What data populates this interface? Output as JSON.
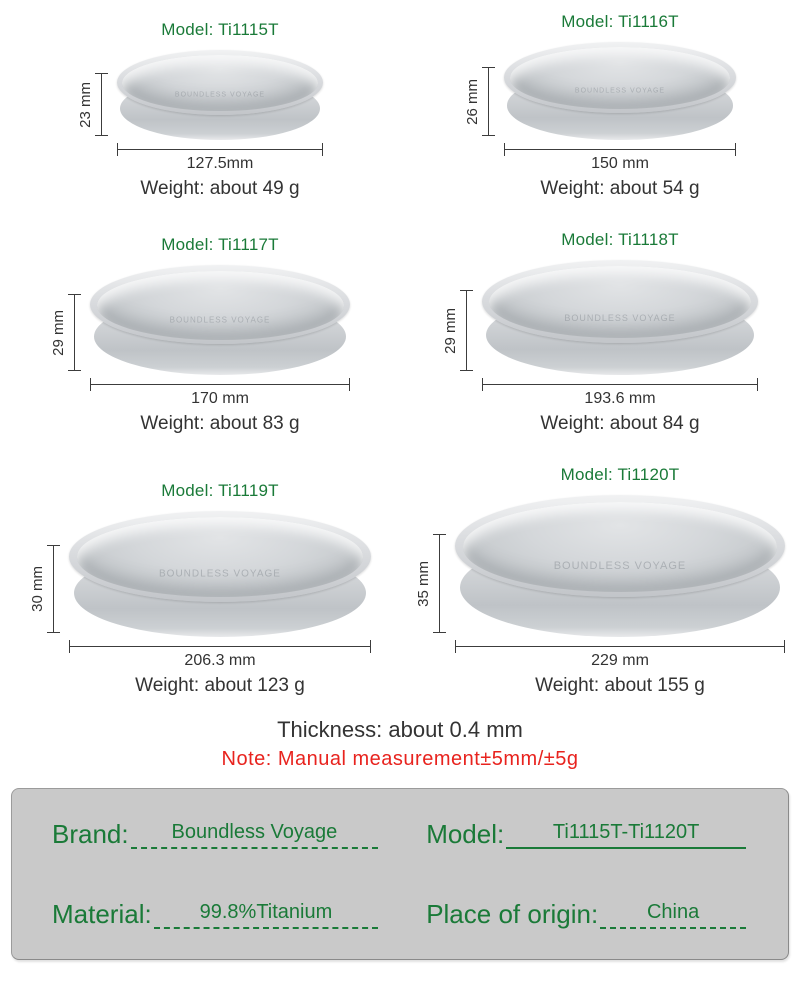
{
  "plates": [
    {
      "model": "Model: Ti1115T",
      "height": "23 mm",
      "diameter": "127.5mm",
      "weight": "Weight: about 49 g"
    },
    {
      "model": "Model: Ti1116T",
      "height": "26 mm",
      "diameter": "150 mm",
      "weight": "Weight: about 54 g"
    },
    {
      "model": "Model: Ti1117T",
      "height": "29 mm",
      "diameter": "170 mm",
      "weight": "Weight: about 83 g"
    },
    {
      "model": "Model: Ti1118T",
      "height": "29 mm",
      "diameter": "193.6 mm",
      "weight": "Weight: about 84 g"
    },
    {
      "model": "Model: Ti1119T",
      "height": "30 mm",
      "diameter": "206.3 mm",
      "weight": "Weight: about 123 g"
    },
    {
      "model": "Model: Ti1120T",
      "height": "35 mm",
      "diameter": "229 mm",
      "weight": "Weight: about 155 g"
    }
  ],
  "logo_text": "Boundless Voyage",
  "thickness": "Thickness: about 0.4 mm",
  "note": "Note: Manual measurement±5mm/±5g",
  "info": {
    "brand_label": "Brand:",
    "brand_value": "Boundless Voyage",
    "model_label": "Model:",
    "model_value": "Ti1115T-Ti1120T",
    "material_label": "Material:",
    "material_value": "99.8%Titanium",
    "origin_label": "Place of origin:",
    "origin_value": "China"
  },
  "colors": {
    "green": "#1a7a38",
    "red": "#e8231e",
    "panel_gray": "#c9c9c9"
  }
}
